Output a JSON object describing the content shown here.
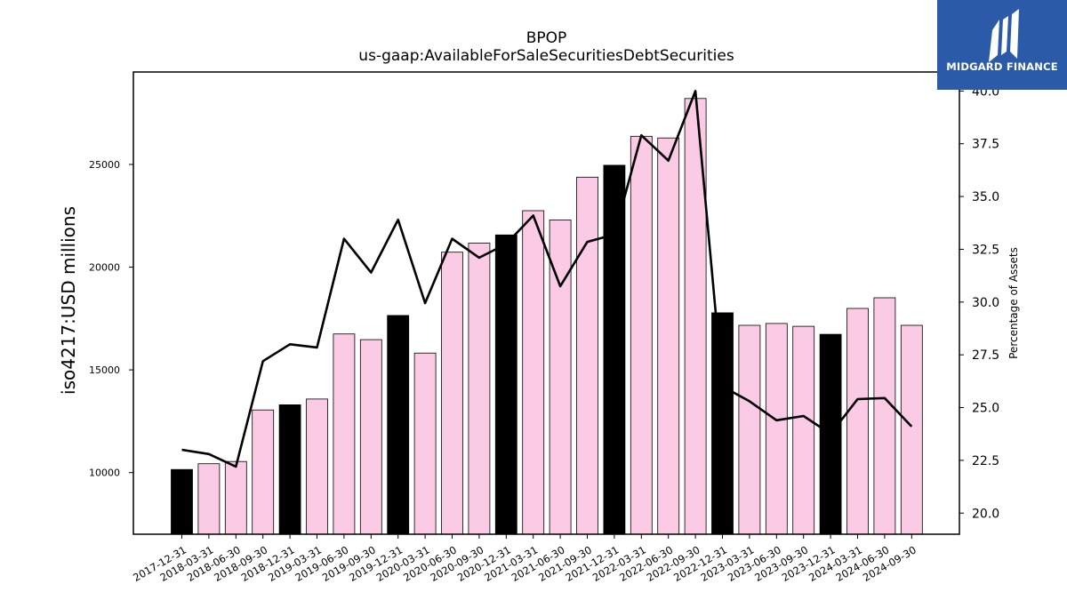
{
  "chart_data": {
    "type": "bar",
    "title": "BPOP",
    "subtitle": "us-gaap:AvailableForSaleSecuritiesDebtSecurities",
    "ylabel": "iso4217:USD  millions",
    "y2label": "Percentage of Assets",
    "ylim": [
      7000,
      29500
    ],
    "y2lim": [
      19.0,
      40.9
    ],
    "yticks": [
      10000,
      15000,
      20000,
      25000
    ],
    "y2ticks": [
      20.0,
      22.5,
      25.0,
      27.5,
      30.0,
      32.5,
      35.0,
      37.5,
      40.0
    ],
    "grid": false,
    "categories": [
      "2017-12-31",
      "2018-03-31",
      "2018-06-30",
      "2018-09-30",
      "2018-12-31",
      "2019-03-31",
      "2019-06-30",
      "2019-09-30",
      "2019-12-31",
      "2020-03-31",
      "2020-06-30",
      "2020-09-30",
      "2020-12-31",
      "2021-03-31",
      "2021-06-30",
      "2021-09-30",
      "2021-12-31",
      "2022-03-31",
      "2022-06-30",
      "2022-09-30",
      "2022-12-31",
      "2023-03-31",
      "2023-06-30",
      "2023-09-30",
      "2023-12-31",
      "2024-03-31",
      "2024-06-30",
      "2024-09-30"
    ],
    "series": [
      {
        "kind": "bar",
        "values": [
          10150,
          10430,
          10540,
          13050,
          13300,
          13580,
          16750,
          16470,
          17650,
          15820,
          20730,
          21170,
          21570,
          22750,
          22300,
          24380,
          24960,
          26370,
          26290,
          28210,
          17780,
          17170,
          17260,
          17120,
          16730,
          17990,
          18510,
          17170
        ],
        "colors": [
          "#000000",
          "#fbcae4",
          "#fbcae4",
          "#fbcae4",
          "#000000",
          "#fbcae4",
          "#fbcae4",
          "#fbcae4",
          "#000000",
          "#fbcae4",
          "#fbcae4",
          "#fbcae4",
          "#000000",
          "#fbcae4",
          "#fbcae4",
          "#fbcae4",
          "#000000",
          "#fbcae4",
          "#fbcae4",
          "#fbcae4",
          "#000000",
          "#fbcae4",
          "#fbcae4",
          "#fbcae4",
          "#000000",
          "#fbcae4",
          "#fbcae4",
          "#fbcae4"
        ]
      },
      {
        "kind": "line",
        "axis": "right",
        "color": "#000000",
        "values": [
          23.0,
          22.8,
          22.2,
          27.2,
          28.0,
          27.85,
          33.0,
          31.4,
          33.9,
          29.95,
          33.0,
          32.1,
          32.75,
          34.1,
          30.75,
          32.85,
          33.2,
          37.9,
          36.7,
          40.0,
          26.0,
          25.3,
          24.4,
          24.6,
          23.75,
          25.4,
          25.45,
          24.1
        ]
      }
    ]
  },
  "logo": {
    "text": "MIDGARD FINANCE"
  }
}
